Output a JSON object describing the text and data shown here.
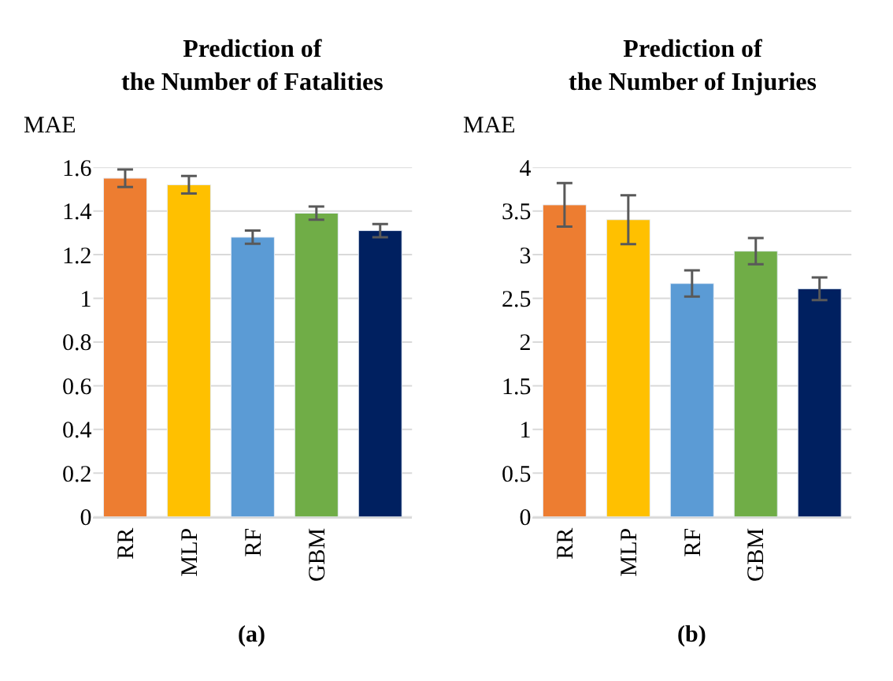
{
  "chart_data": [
    {
      "type": "bar",
      "title": "Prediction of\nthe Number of Fatalities",
      "ylabel": "MAE",
      "categories": [
        "RR",
        "MLP",
        "RF",
        "GBM",
        null
      ],
      "values": [
        1.55,
        1.52,
        1.28,
        1.39,
        1.31
      ],
      "errors": [
        0.04,
        0.04,
        0.03,
        0.03,
        0.03
      ],
      "colors": [
        "#ed7d31",
        "#ffc000",
        "#5b9bd5",
        "#70ad47",
        "#002060"
      ],
      "ylim": [
        0,
        1.6
      ],
      "yticks": [
        0,
        0.2,
        0.4,
        0.6,
        0.8,
        1,
        1.2,
        1.4,
        1.6
      ],
      "grid": "y",
      "annotations": [
        "(a)"
      ]
    },
    {
      "type": "bar",
      "title": "Prediction of\nthe Number of Injuries",
      "ylabel": "MAE",
      "categories": [
        "RR",
        "MLP",
        "RF",
        "GBM",
        null
      ],
      "values": [
        3.57,
        3.4,
        2.67,
        3.04,
        2.61
      ],
      "errors": [
        0.25,
        0.28,
        0.15,
        0.15,
        0.13
      ],
      "colors": [
        "#ed7d31",
        "#ffc000",
        "#5b9bd5",
        "#70ad47",
        "#002060"
      ],
      "ylim": [
        0,
        4
      ],
      "yticks": [
        0,
        0.5,
        1,
        1.5,
        2,
        2.5,
        3,
        3.5,
        4
      ],
      "grid": "y",
      "annotations": [
        "(b)"
      ]
    }
  ]
}
